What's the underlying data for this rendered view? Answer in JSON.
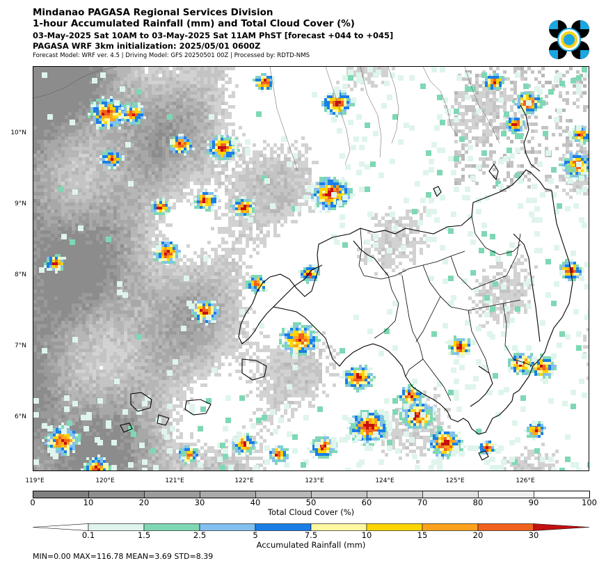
{
  "header": {
    "line1": "Mindanao PAGASA Regional Services Division",
    "line2": "1-hour Accumulated Rainfall (mm) and Total Cloud Cover (%)",
    "line3": "03-May-2025 Sat 10AM to 03-May-2025 Sat 11AM PhST [forecast +044 to +045]",
    "line4": "PAGASA WRF 3km initialization: 2025/05/01 0600Z",
    "line5": "Forecast Model: WRF ver. 4.5 | Driving Model: GFS 20250501 00Z | Processed by: RDTD-NMS"
  },
  "map": {
    "lat_labels": [
      "10°N",
      "9°N",
      "8°N",
      "7°N",
      "6°N"
    ],
    "lon_labels": [
      "119°E",
      "120°E",
      "121°E",
      "122°E",
      "123°E",
      "124°E",
      "125°E",
      "126°E"
    ]
  },
  "cloud_colorbar": {
    "ticks": [
      "0",
      "10",
      "20",
      "30",
      "40",
      "50",
      "60",
      "70",
      "80",
      "90",
      "100"
    ],
    "title": "Total Cloud Cover (%)",
    "colors": [
      "#808080",
      "#8e8e8e",
      "#9c9c9c",
      "#aaaaaa",
      "#b8b8b8",
      "#c6c6c6",
      "#d4d4d4",
      "#e2e2e2",
      "#f0f0f0",
      "#ffffff"
    ]
  },
  "rain_colorbar": {
    "ticks": [
      "0.1",
      "1.5",
      "2.5",
      "5",
      "7.5",
      "10",
      "15",
      "20",
      "30"
    ],
    "title": "Accumulated Rainfall (mm)",
    "colors": [
      "#ffffff",
      "#dff5ec",
      "#7ed8b4",
      "#82c0f0",
      "#1a7ee6",
      "#fff8a0",
      "#ffd400",
      "#fca21e",
      "#f0621e",
      "#c41010"
    ]
  },
  "stats": "MIN=0.00   MAX=116.78   MEAN=3.69   STD=8.39"
}
